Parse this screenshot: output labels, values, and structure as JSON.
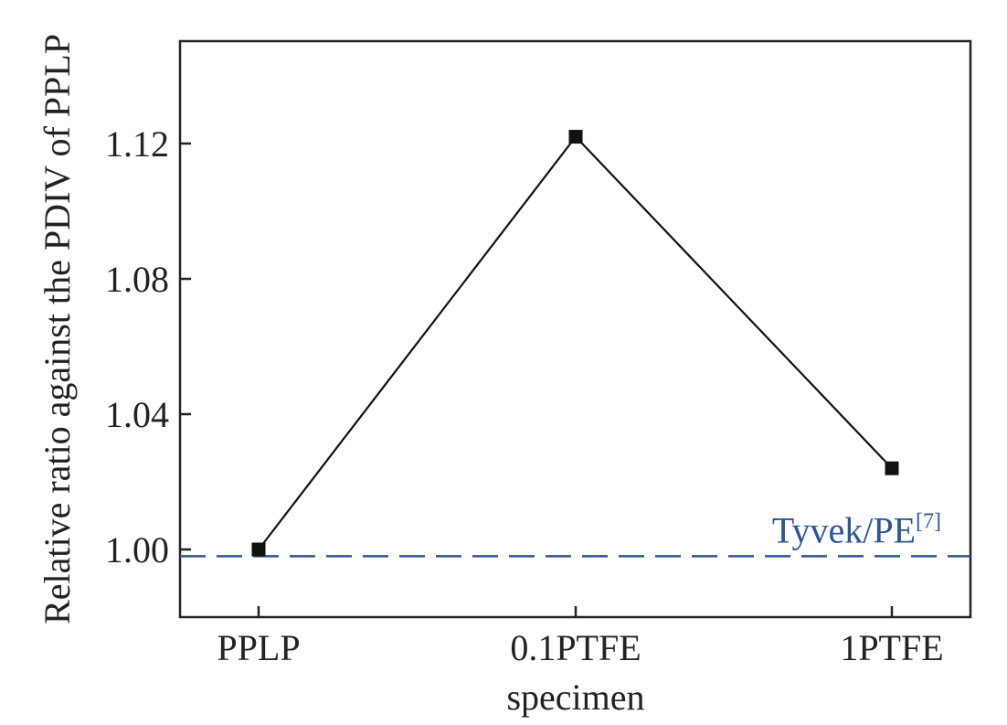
{
  "chart_data": {
    "type": "line",
    "categories": [
      "PPLP",
      "0.1PTFE",
      "1PTFE"
    ],
    "series": [
      {
        "values": [
          1.0,
          1.122,
          1.024
        ],
        "color": "#111111",
        "marker": "square"
      }
    ],
    "xlabel": "specimen",
    "ylabel": "Relative ratio against the PDIV of PPLP",
    "ylim": [
      0.98,
      1.15
    ],
    "yticks": [
      1.0,
      1.04,
      1.08,
      1.12
    ],
    "ytick_labels": [
      "1.00",
      "1.04",
      "1.08",
      "1.12"
    ],
    "grid": false,
    "reference_line": {
      "value": 0.998,
      "style": "dashed",
      "color": "#2f5597",
      "label": "Tyvek/PE",
      "label_superscript": "[7]"
    }
  }
}
